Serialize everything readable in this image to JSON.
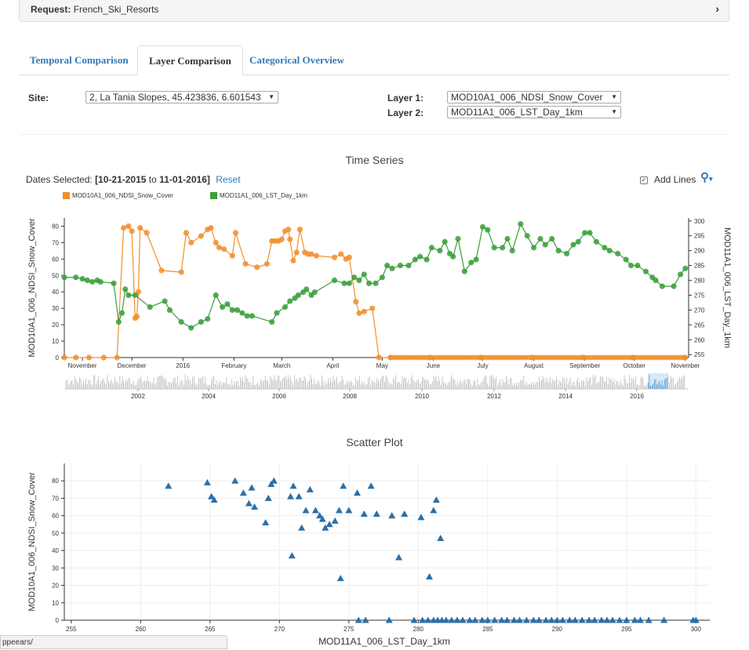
{
  "request": {
    "label": "Request:",
    "value": "French_Ski_Resorts"
  },
  "tabs": [
    "Temporal Comparison",
    "Layer Comparison",
    "Categorical Overview"
  ],
  "form": {
    "site_label": "Site:",
    "site_value": "2, La Tania Slopes, 45.423836, 6.601543",
    "layer1_label": "Layer 1:",
    "layer1_value": "MOD10A1_006_NDSI_Snow_Cover",
    "layer2_label": "Layer 2:",
    "layer2_value": "MOD11A1_006_LST_Day_1km"
  },
  "timeseries": {
    "title": "Time Series",
    "dates_prefix": "Dates Selected:",
    "date_start": "10-21-2015",
    "date_to": "to",
    "date_end": "11-01-2016",
    "reset": "Reset",
    "add_lines": "Add Lines",
    "zoom_icon": "zoom-in-icon"
  },
  "scatter_title": "Scatter Plot",
  "status_url": "ppeears/",
  "colors": {
    "snow": "#f28e2b",
    "lst": "#3a9e3a",
    "scatter": "#2c6fa8",
    "nav_bar": "#1f77b4"
  },
  "chart_data": [
    {
      "type": "line",
      "title": "Time Series",
      "ylabel": "MOD10A1_006_NDSI_Snow_Cover",
      "y2label": "MOD11A1_006_LST_Day_1km",
      "ylim": [
        0,
        85
      ],
      "y2lim": [
        254,
        301
      ],
      "x_month_ticks": [
        "November",
        "December",
        "2016",
        "February",
        "March",
        "April",
        "May",
        "June",
        "July",
        "August",
        "September",
        "October",
        "November"
      ],
      "yticks": [
        0,
        10,
        20,
        30,
        40,
        50,
        60,
        70,
        80
      ],
      "y2ticks": [
        255,
        260,
        265,
        270,
        275,
        280,
        285,
        290,
        295,
        300
      ],
      "nav_year_ticks": [
        "2002",
        "2004",
        "2006",
        "2008",
        "2010",
        "2012",
        "2014",
        "2016"
      ],
      "legend_placement": "top-left",
      "grid": false,
      "series": [
        {
          "name": "MOD10A1_006_NDSI_Snow_Cover",
          "x": [
            "2015-10-21",
            "2015-10-28",
            "2015-11-05",
            "2015-11-14",
            "2015-11-22",
            "2015-11-26",
            "2015-11-29",
            "2015-12-01",
            "2015-12-03",
            "2015-12-04",
            "2015-12-05",
            "2015-12-06",
            "2015-12-10",
            "2015-12-19",
            "2015-12-31",
            "2016-01-03",
            "2016-01-06",
            "2016-01-12",
            "2016-01-16",
            "2016-01-18",
            "2016-01-21",
            "2016-01-23",
            "2016-01-26",
            "2016-01-31",
            "2016-02-02",
            "2016-02-08",
            "2016-02-15",
            "2016-02-21",
            "2016-02-24",
            "2016-02-26",
            "2016-02-28",
            "2016-03-01",
            "2016-03-03",
            "2016-03-05",
            "2016-03-06",
            "2016-03-08",
            "2016-03-10",
            "2016-03-12",
            "2016-03-15",
            "2016-03-17",
            "2016-03-19",
            "2016-03-22",
            "2016-04-02",
            "2016-04-06",
            "2016-04-09",
            "2016-04-11",
            "2016-04-15",
            "2016-04-17",
            "2016-04-20",
            "2016-04-25",
            "2016-04-29",
            "2016-05-06",
            "2016-05-30",
            "2016-06-30",
            "2016-07-31",
            "2016-08-31",
            "2016-09-30",
            "2016-11-01"
          ],
          "values": [
            0,
            0,
            0,
            0,
            0,
            79,
            80,
            77,
            24,
            25,
            40,
            79,
            76,
            53,
            52,
            76,
            70,
            74,
            78,
            79,
            70,
            67,
            66,
            62,
            76,
            57,
            55,
            57,
            71,
            71,
            71,
            72,
            77,
            78,
            72,
            59,
            64,
            78,
            64,
            63,
            63,
            62,
            61,
            63,
            60,
            61,
            34,
            27,
            28,
            30,
            0,
            0,
            0,
            0,
            0,
            0,
            0,
            0
          ]
        },
        {
          "name": "MOD11A1_006_LST_Day_1km",
          "x": [
            "2015-10-21",
            "2015-10-28",
            "2015-11-01",
            "2015-11-04",
            "2015-11-07",
            "2015-11-10",
            "2015-11-12",
            "2015-11-20",
            "2015-11-23",
            "2015-11-25",
            "2015-11-27",
            "2015-11-29",
            "2015-12-03",
            "2015-12-12",
            "2015-12-21",
            "2015-12-24",
            "2015-12-31",
            "2016-01-06",
            "2016-01-12",
            "2016-01-16",
            "2016-01-21",
            "2016-01-25",
            "2016-01-28",
            "2016-01-31",
            "2016-02-03",
            "2016-02-06",
            "2016-02-09",
            "2016-02-12",
            "2016-02-24",
            "2016-02-27",
            "2016-03-03",
            "2016-03-06",
            "2016-03-09",
            "2016-03-11",
            "2016-03-14",
            "2016-03-16",
            "2016-03-19",
            "2016-03-21",
            "2016-04-02",
            "2016-04-08",
            "2016-04-11",
            "2016-04-14",
            "2016-04-17",
            "2016-04-20",
            "2016-04-23",
            "2016-04-27",
            "2016-05-01",
            "2016-05-04",
            "2016-05-07",
            "2016-05-12",
            "2016-05-17",
            "2016-05-21",
            "2016-05-24",
            "2016-05-28",
            "2016-05-31",
            "2016-06-05",
            "2016-06-08",
            "2016-06-11",
            "2016-06-13",
            "2016-06-16",
            "2016-06-20",
            "2016-06-24",
            "2016-06-27",
            "2016-07-01",
            "2016-07-04",
            "2016-07-08",
            "2016-07-13",
            "2016-07-16",
            "2016-07-19",
            "2016-07-24",
            "2016-07-28",
            "2016-08-01",
            "2016-08-05",
            "2016-08-08",
            "2016-08-12",
            "2016-08-16",
            "2016-08-21",
            "2016-08-25",
            "2016-08-28",
            "2016-09-01",
            "2016-09-04",
            "2016-09-08",
            "2016-09-13",
            "2016-09-16",
            "2016-09-21",
            "2016-09-26",
            "2016-09-29",
            "2016-10-03",
            "2016-10-08",
            "2016-10-12",
            "2016-10-14",
            "2016-10-18",
            "2016-10-25",
            "2016-10-29",
            "2016-11-01"
          ],
          "values": [
            281,
            281,
            280.5,
            280,
            279.5,
            280,
            279.5,
            279,
            266,
            269,
            277,
            275,
            275,
            271,
            273,
            270,
            266,
            264,
            266,
            267,
            275,
            271,
            272,
            270,
            270,
            269,
            268,
            268,
            266,
            269,
            271,
            273,
            274,
            275,
            276,
            277,
            275,
            276,
            280,
            279,
            279,
            281,
            280,
            282,
            279,
            279,
            281,
            285,
            284,
            285,
            285,
            287,
            288,
            287,
            291,
            290,
            293,
            289,
            288,
            294,
            283,
            286,
            287,
            298,
            297,
            291,
            291,
            294,
            290,
            299,
            295,
            291,
            294,
            292,
            294,
            290,
            289,
            292,
            293,
            296,
            296,
            293,
            291,
            290,
            289,
            287,
            285,
            285,
            283,
            281,
            280,
            278,
            278,
            282,
            284
          ]
        }
      ]
    },
    {
      "type": "scatter",
      "title": "Scatter Plot",
      "xlabel": "MOD11A1_006_LST_Day_1km",
      "ylabel": "MOD10A1_006_NDSI_Snow_Cover",
      "xlim": [
        254.5,
        301
      ],
      "ylim": [
        0,
        90
      ],
      "xticks": [
        255,
        260,
        265,
        270,
        275,
        280,
        285,
        290,
        295,
        300
      ],
      "yticks": [
        0,
        10,
        20,
        30,
        40,
        50,
        60,
        70,
        80
      ],
      "grid": true,
      "x": [
        262,
        264.8,
        265.1,
        265.3,
        266.8,
        267.4,
        267.8,
        268,
        268.2,
        269,
        269.2,
        269.4,
        269.6,
        270.8,
        271,
        271.4,
        271.6,
        271.9,
        272.2,
        272.6,
        272.9,
        273.1,
        273.3,
        273.6,
        274,
        274.3,
        274.6,
        275,
        275.6,
        276.1,
        276.6,
        277,
        278.1,
        279,
        280.2,
        280.8,
        281.1,
        281.3,
        281.6,
        274.4,
        270.9,
        278.6,
        275.7,
        276.2,
        277.9,
        279.7,
        280.3,
        280.7,
        281.1,
        281.4,
        281.7,
        282,
        282.4,
        282.8,
        283.2,
        283.7,
        284.1,
        284.6,
        285,
        285.5,
        286,
        286.4,
        286.9,
        287.3,
        287.8,
        288.3,
        288.7,
        289.2,
        289.6,
        290,
        290.4,
        290.9,
        291.3,
        291.8,
        292.3,
        292.7,
        293.2,
        293.6,
        294,
        294.5,
        295,
        295.6,
        296,
        296.6,
        297.7,
        299.8,
        300
      ],
      "y": [
        77,
        79,
        71,
        69,
        80,
        73,
        67,
        76,
        65,
        56,
        70,
        78,
        80,
        71,
        77,
        71,
        53,
        63,
        75,
        63,
        60,
        58,
        53,
        55,
        57,
        63,
        77,
        63,
        73,
        61,
        77,
        61,
        60,
        61,
        59,
        25,
        63,
        69,
        47,
        24,
        37,
        36,
        0,
        0,
        0,
        0,
        0,
        0,
        0,
        0,
        0,
        0,
        0,
        0,
        0,
        0,
        0,
        0,
        0,
        0,
        0,
        0,
        0,
        0,
        0,
        0,
        0,
        0,
        0,
        0,
        0,
        0,
        0,
        0,
        0,
        0,
        0,
        0,
        0,
        0,
        0,
        0,
        0,
        0,
        0,
        0,
        0
      ]
    }
  ]
}
